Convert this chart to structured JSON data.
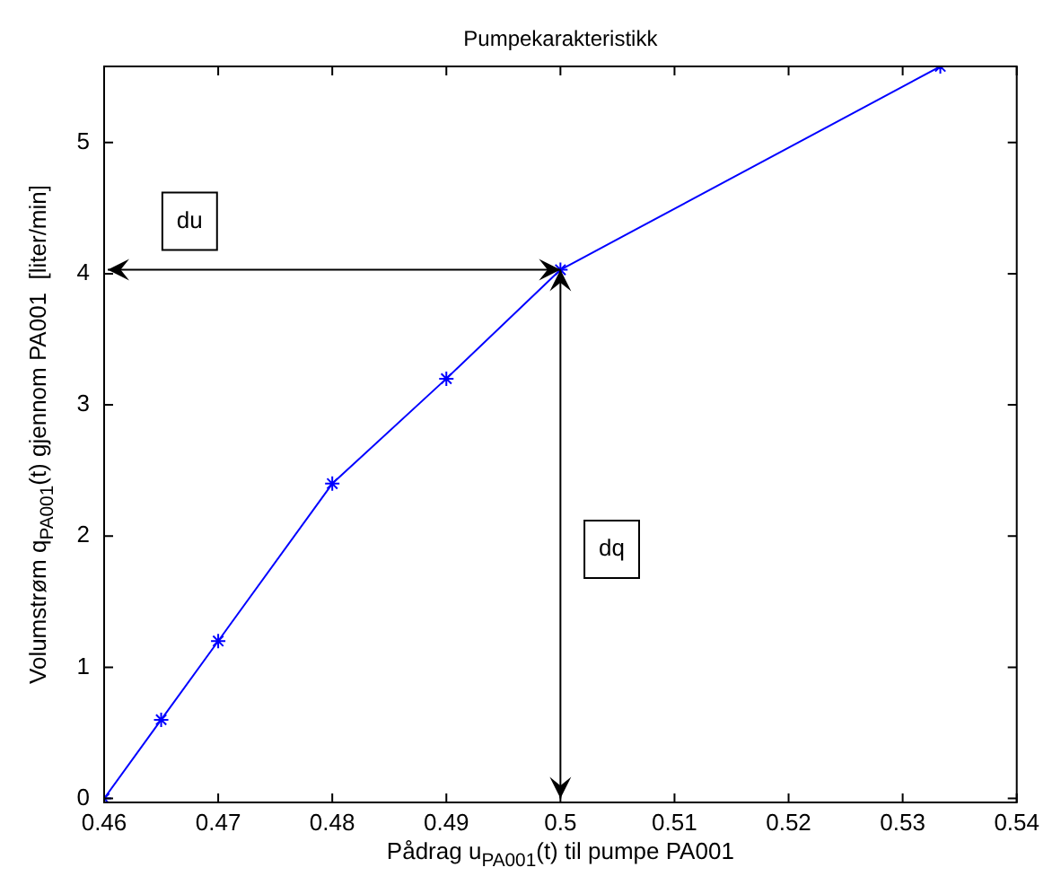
{
  "chart_data": {
    "type": "line",
    "title": "Pumpekarakteristikk",
    "xlabel": "Pådrag u$_{PA001}$(t) til pumpe PA001",
    "ylabel": "Volumstrøm q$_{PA001}$(t) gjennom PA001  [liter/min]",
    "x": [
      0.46,
      0.465,
      0.47,
      0.48,
      0.49,
      0.5,
      0.5333
    ],
    "series": [
      {
        "color": "#0000ff",
        "values": [
          0,
          0.6,
          1.2,
          2.4,
          3.2,
          4.03,
          5.58
        ]
      }
    ],
    "marker": "cross",
    "line_style": "solid",
    "legend": false,
    "xlim": [
      0.46,
      0.54
    ],
    "xticks": [
      0.46,
      0.47,
      0.48,
      0.49,
      0.5,
      0.51,
      0.52,
      0.53,
      0.54
    ],
    "ylim": [
      -0.03,
      5.58
    ],
    "yticks": [
      0,
      1,
      2,
      3,
      4,
      5
    ],
    "annotations": [
      {
        "text": "du",
        "x": 0.4675,
        "y": 4.4
      },
      {
        "text": "dq",
        "x": 0.5045,
        "y": 1.9
      }
    ]
  }
}
